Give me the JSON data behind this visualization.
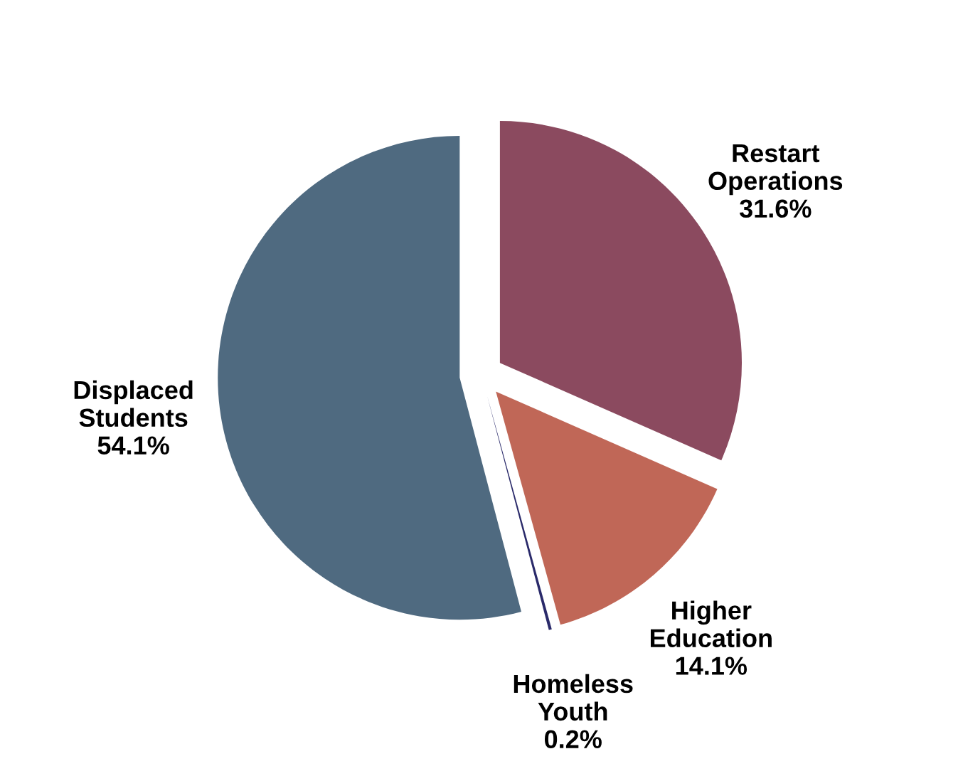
{
  "chart_data": {
    "type": "pie",
    "categories": [
      "Restart\nOperations",
      "Higher\nEducation",
      "Homeless\nYouth",
      "Displaced\nStudents"
    ],
    "values": [
      31.6,
      14.1,
      0.2,
      54.1
    ],
    "colors": [
      "#8b4a5f",
      "#c06757",
      "#2a2a6a",
      "#4f6a80"
    ],
    "value_labels": [
      "31.6%",
      "14.1%",
      "0.2%",
      "54.1%"
    ]
  }
}
